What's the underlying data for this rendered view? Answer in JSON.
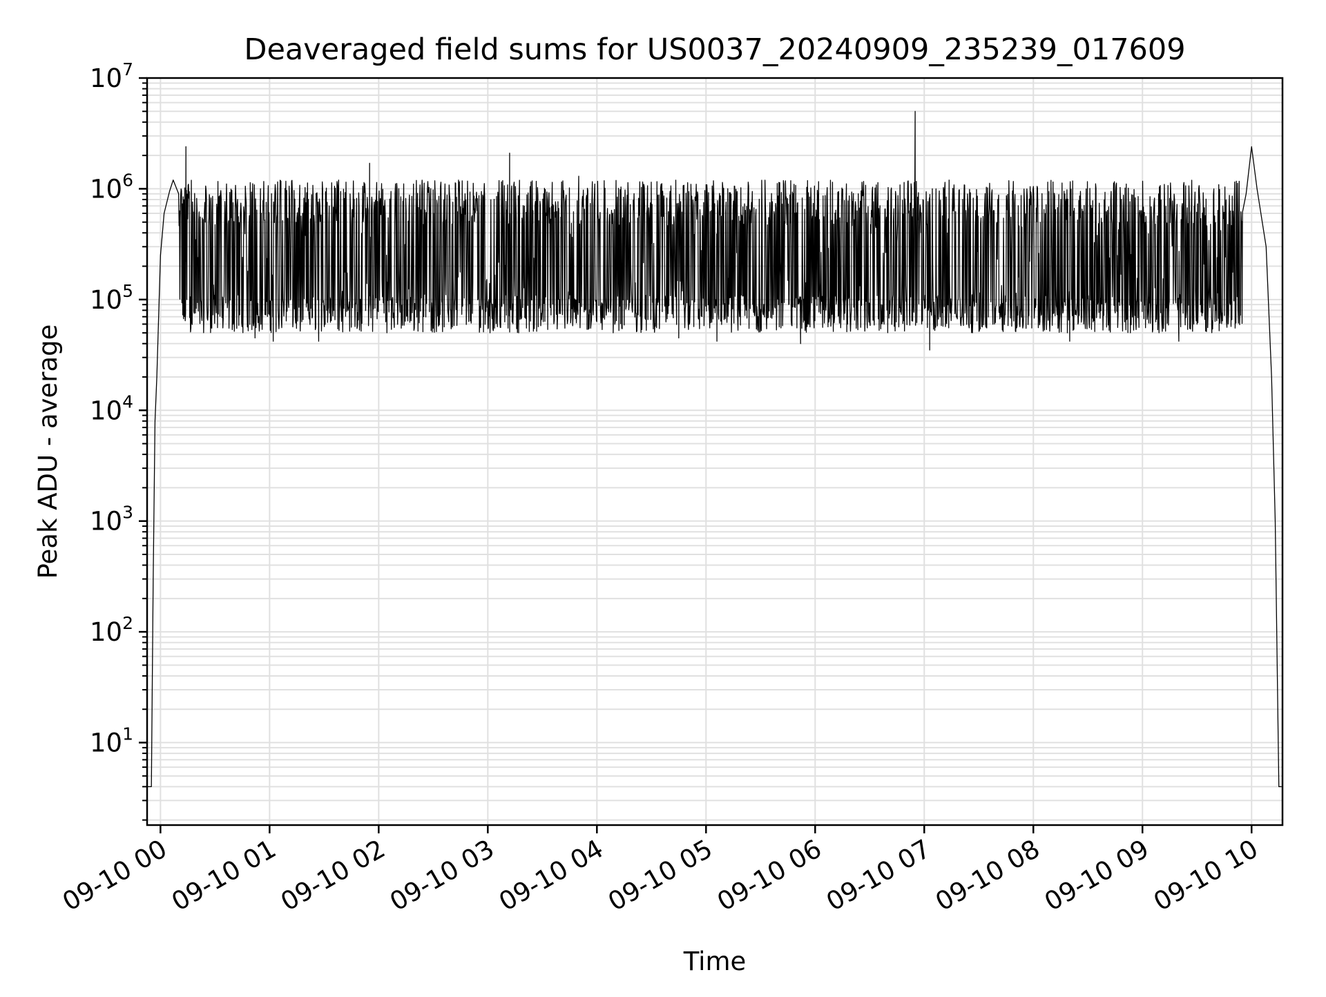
{
  "chart_data": {
    "type": "line",
    "title": "Deaveraged field sums for US0037_20240909_235239_017609",
    "xlabel": "Time",
    "ylabel": "Peak ADU - average",
    "yscale": "log",
    "ylim": [
      1.8,
      10000000
    ],
    "xlim": [
      "2024-09-09 23:52:39",
      "2024-09-10 10:17:00"
    ],
    "x_ticks": [
      "09-10 00",
      "09-10 01",
      "09-10 02",
      "09-10 03",
      "09-10 04",
      "09-10 05",
      "09-10 06",
      "09-10 07",
      "09-10 08",
      "09-10 09",
      "09-10 10"
    ],
    "y_ticks": [
      {
        "base": "10",
        "exp": "1"
      },
      {
        "base": "10",
        "exp": "2"
      },
      {
        "base": "10",
        "exp": "3"
      },
      {
        "base": "10",
        "exp": "4"
      },
      {
        "base": "10",
        "exp": "5"
      },
      {
        "base": "10",
        "exp": "6"
      },
      {
        "base": "10",
        "exp": "7"
      }
    ],
    "grid": true,
    "line_color": "#000000",
    "grid_color": "#e0e0e0",
    "series": [
      {
        "points": [
          [
            "2024-09-09 23:52:40",
            4
          ],
          [
            "2024-09-09 23:55:00",
            4
          ],
          [
            "2024-09-09 23:56:00",
            300
          ],
          [
            "2024-09-09 23:57:00",
            8000
          ],
          [
            "2024-09-09 23:58:00",
            20000
          ],
          [
            "2024-09-10 00:00:00",
            250000
          ],
          [
            "2024-09-10 00:02:00",
            600000
          ],
          [
            "2024-09-10 00:05:00",
            950000
          ],
          [
            "2024-09-10 00:07:00",
            1200000
          ],
          [
            "2024-09-10 00:10:00",
            900000
          ],
          [
            "2024-09-10 00:14:00",
            2400000
          ],
          [
            "2024-09-10 00:15:00",
            600000
          ],
          [
            "2024-09-10 00:30:00",
            150000
          ],
          [
            "2024-09-10 00:40:00",
            60000
          ],
          [
            "2024-09-10 00:52:00",
            45000
          ],
          [
            "2024-09-10 01:02:00",
            42000
          ],
          [
            "2024-09-10 01:24:00",
            750000
          ],
          [
            "2024-09-10 01:27:00",
            42000
          ],
          [
            "2024-09-10 01:55:00",
            1700000
          ],
          [
            "2024-09-10 02:30:00",
            55000
          ],
          [
            "2024-09-10 03:12:00",
            2100000
          ],
          [
            "2024-09-10 03:50:00",
            1300000
          ],
          [
            "2024-09-10 04:45:00",
            45000
          ],
          [
            "2024-09-10 05:06:00",
            42000
          ],
          [
            "2024-09-10 05:52:00",
            40000
          ],
          [
            "2024-09-10 06:55:00",
            5000000
          ],
          [
            "2024-09-10 07:03:00",
            35000
          ],
          [
            "2024-09-10 08:20:00",
            42000
          ],
          [
            "2024-09-10 09:20:00",
            42000
          ],
          [
            "2024-09-10 09:35:00",
            350000
          ],
          [
            "2024-09-10 09:57:00",
            900000
          ],
          [
            "2024-09-10 10:00:00",
            2400000
          ],
          [
            "2024-09-10 10:03:00",
            1000000
          ],
          [
            "2024-09-10 10:08:00",
            300000
          ],
          [
            "2024-09-10 10:11:00",
            20000
          ],
          [
            "2024-09-10 10:13:00",
            1000
          ],
          [
            "2024-09-10 10:15:00",
            4
          ],
          [
            "2024-09-10 10:16:30",
            4
          ]
        ],
        "band": {
          "from": "2024-09-10 00:10:00",
          "to": "2024-09-10 09:55:00",
          "typical_low": 50000,
          "typical_high": 1200000
        }
      }
    ]
  }
}
